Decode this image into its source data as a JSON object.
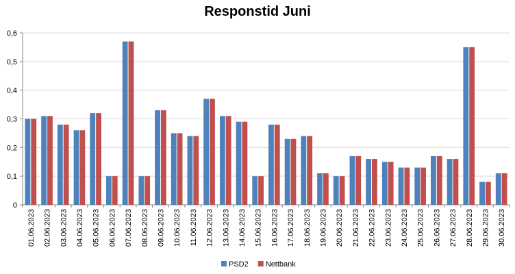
{
  "chart_data": {
    "type": "bar",
    "title": "Responstid Juni",
    "xlabel": "",
    "ylabel": "",
    "ylim": [
      0,
      0.6
    ],
    "yticks": [
      "0",
      "0,1",
      "0,2",
      "0,3",
      "0,4",
      "0,5",
      "0,6"
    ],
    "ytick_values": [
      0,
      0.1,
      0.2,
      0.3,
      0.4,
      0.5,
      0.6
    ],
    "grid": true,
    "legend_position": "bottom",
    "categories": [
      "01.06.2023",
      "02.06.2023",
      "03.06.2023",
      "04.06.2023",
      "05.06.2023",
      "06.06.2023",
      "07.06.2023",
      "08.06.2023",
      "09.06.2023",
      "10.06.2023",
      "11.06.2023",
      "12.06.2023",
      "13.06.2023",
      "14.06.2023",
      "15.06.2023",
      "16.06.2023",
      "17.06.2023",
      "18.06.2023",
      "19.06.2023",
      "20.06.2023",
      "21.06.2023",
      "22.06.2023",
      "23.06.2023",
      "24.06.2023",
      "25.06.2023",
      "26.06.2023",
      "27.06.2023",
      "28.06.2023",
      "29.06.2023",
      "30.06.2023"
    ],
    "series": [
      {
        "name": "PSD2",
        "color": "#4f81bd",
        "values": [
          0.3,
          0.31,
          0.28,
          0.26,
          0.32,
          0.1,
          0.57,
          0.1,
          0.33,
          0.25,
          0.24,
          0.37,
          0.31,
          0.29,
          0.1,
          0.28,
          0.23,
          0.24,
          0.11,
          0.1,
          0.17,
          0.16,
          0.15,
          0.13,
          0.13,
          0.17,
          0.16,
          0.55,
          0.08,
          0.11
        ]
      },
      {
        "name": "Nettbank",
        "color": "#c0504d",
        "values": [
          0.3,
          0.31,
          0.28,
          0.26,
          0.32,
          0.1,
          0.57,
          0.1,
          0.33,
          0.25,
          0.24,
          0.37,
          0.31,
          0.29,
          0.1,
          0.28,
          0.23,
          0.24,
          0.11,
          0.1,
          0.17,
          0.16,
          0.15,
          0.13,
          0.13,
          0.17,
          0.16,
          0.55,
          0.08,
          0.11
        ]
      }
    ]
  }
}
